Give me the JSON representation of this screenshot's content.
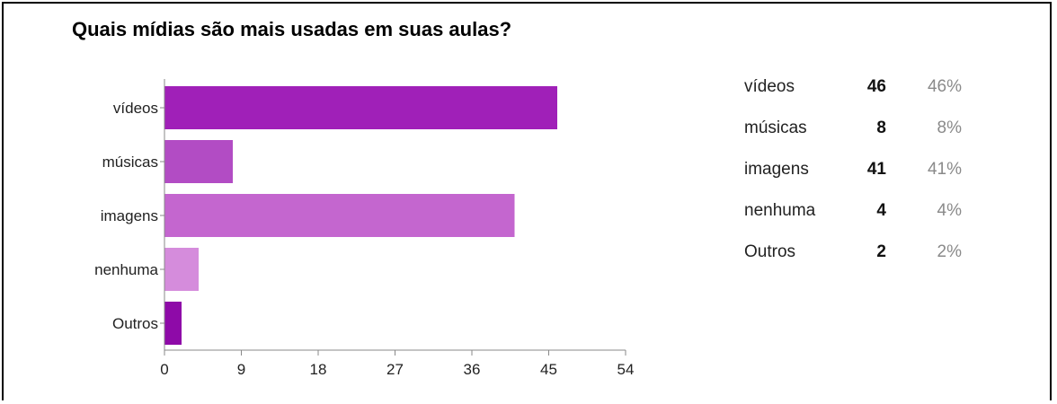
{
  "chart_data": {
    "type": "bar",
    "orientation": "horizontal",
    "title": "Quais mídias são mais usadas em suas aulas?",
    "categories": [
      "vídeos",
      "músicas",
      "imagens",
      "nenhuma",
      "Outros"
    ],
    "values": [
      46,
      8,
      41,
      4,
      2
    ],
    "percentages": [
      "46%",
      "8%",
      "41%",
      "4%",
      "2%"
    ],
    "colors": [
      "#a020b8",
      "#b24cc4",
      "#c466cf",
      "#d58cdc",
      "#8e0aa8"
    ],
    "xlim": [
      0,
      54
    ],
    "xticks": [
      0,
      9,
      18,
      27,
      36,
      45,
      54
    ],
    "xlabel": "",
    "ylabel": "",
    "legend_placement": "right"
  }
}
